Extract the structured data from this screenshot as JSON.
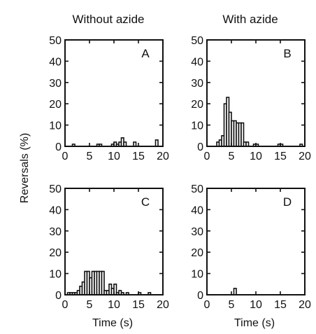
{
  "column_titles": [
    "Without azide",
    "With azide"
  ],
  "shared_ylabel": "Reversals (%)",
  "chart_data": [
    {
      "type": "bar",
      "panel": "A",
      "xlabel": "",
      "ylabel": "",
      "xlim": [
        0,
        20
      ],
      "ylim": [
        0,
        50
      ],
      "xticks": [
        0,
        5,
        10,
        15,
        20
      ],
      "yticks": [
        0,
        10,
        20,
        30,
        40,
        50
      ],
      "bin_width": 0.5,
      "bins": [
        {
          "x": 1.5,
          "y": 1
        },
        {
          "x": 6.5,
          "y": 1
        },
        {
          "x": 7.0,
          "y": 1
        },
        {
          "x": 9.5,
          "y": 1
        },
        {
          "x": 10.0,
          "y": 2
        },
        {
          "x": 10.5,
          "y": 1
        },
        {
          "x": 11.0,
          "y": 2
        },
        {
          "x": 11.5,
          "y": 4
        },
        {
          "x": 12.0,
          "y": 2
        },
        {
          "x": 14.0,
          "y": 2
        },
        {
          "x": 18.5,
          "y": 3
        }
      ]
    },
    {
      "type": "bar",
      "panel": "B",
      "xlabel": "",
      "ylabel": "",
      "xlim": [
        0,
        20
      ],
      "ylim": [
        0,
        50
      ],
      "xticks": [
        0,
        5,
        10,
        15,
        20
      ],
      "yticks": [
        0,
        10,
        20,
        30,
        40,
        50
      ],
      "bin_width": 0.5,
      "bins": [
        {
          "x": 2.0,
          "y": 2
        },
        {
          "x": 2.5,
          "y": 3
        },
        {
          "x": 3.0,
          "y": 5
        },
        {
          "x": 3.5,
          "y": 20
        },
        {
          "x": 4.0,
          "y": 23
        },
        {
          "x": 4.5,
          "y": 16
        },
        {
          "x": 5.0,
          "y": 12
        },
        {
          "x": 5.5,
          "y": 12
        },
        {
          "x": 6.0,
          "y": 11
        },
        {
          "x": 6.5,
          "y": 11
        },
        {
          "x": 7.0,
          "y": 11
        },
        {
          "x": 7.5,
          "y": 2
        },
        {
          "x": 8.0,
          "y": 2
        },
        {
          "x": 9.5,
          "y": 1
        },
        {
          "x": 10.0,
          "y": 1
        },
        {
          "x": 14.5,
          "y": 1
        },
        {
          "x": 15.0,
          "y": 1
        },
        {
          "x": 19.0,
          "y": 1
        }
      ]
    },
    {
      "type": "bar",
      "panel": "C",
      "xlabel": "Time (s)",
      "ylabel": "",
      "xlim": [
        0,
        20
      ],
      "ylim": [
        0,
        50
      ],
      "xticks": [
        0,
        5,
        10,
        15,
        20
      ],
      "yticks": [
        0,
        10,
        20,
        30,
        40,
        50
      ],
      "bin_width": 0.5,
      "bins": [
        {
          "x": 0.5,
          "y": 1
        },
        {
          "x": 1.0,
          "y": 1
        },
        {
          "x": 1.5,
          "y": 1
        },
        {
          "x": 2.0,
          "y": 1
        },
        {
          "x": 2.5,
          "y": 2
        },
        {
          "x": 3.0,
          "y": 4
        },
        {
          "x": 3.5,
          "y": 6
        },
        {
          "x": 4.0,
          "y": 11
        },
        {
          "x": 4.5,
          "y": 11
        },
        {
          "x": 5.0,
          "y": 8
        },
        {
          "x": 5.5,
          "y": 11
        },
        {
          "x": 6.0,
          "y": 11
        },
        {
          "x": 6.5,
          "y": 11
        },
        {
          "x": 7.0,
          "y": 11
        },
        {
          "x": 7.5,
          "y": 11
        },
        {
          "x": 8.0,
          "y": 2
        },
        {
          "x": 8.5,
          "y": 2
        },
        {
          "x": 9.0,
          "y": 5
        },
        {
          "x": 9.5,
          "y": 3
        },
        {
          "x": 10.0,
          "y": 5
        },
        {
          "x": 10.5,
          "y": 1
        },
        {
          "x": 11.0,
          "y": 2
        },
        {
          "x": 11.5,
          "y": 1
        },
        {
          "x": 12.5,
          "y": 1
        },
        {
          "x": 15.0,
          "y": 1
        },
        {
          "x": 17.0,
          "y": 1
        }
      ]
    },
    {
      "type": "bar",
      "panel": "D",
      "xlabel": "Time (s)",
      "ylabel": "",
      "xlim": [
        0,
        20
      ],
      "ylim": [
        0,
        50
      ],
      "xticks": [
        0,
        5,
        10,
        15,
        20
      ],
      "yticks": [
        0,
        10,
        20,
        30,
        40,
        50
      ],
      "bin_width": 0.5,
      "bins": [
        {
          "x": 5.5,
          "y": 3
        }
      ]
    }
  ]
}
